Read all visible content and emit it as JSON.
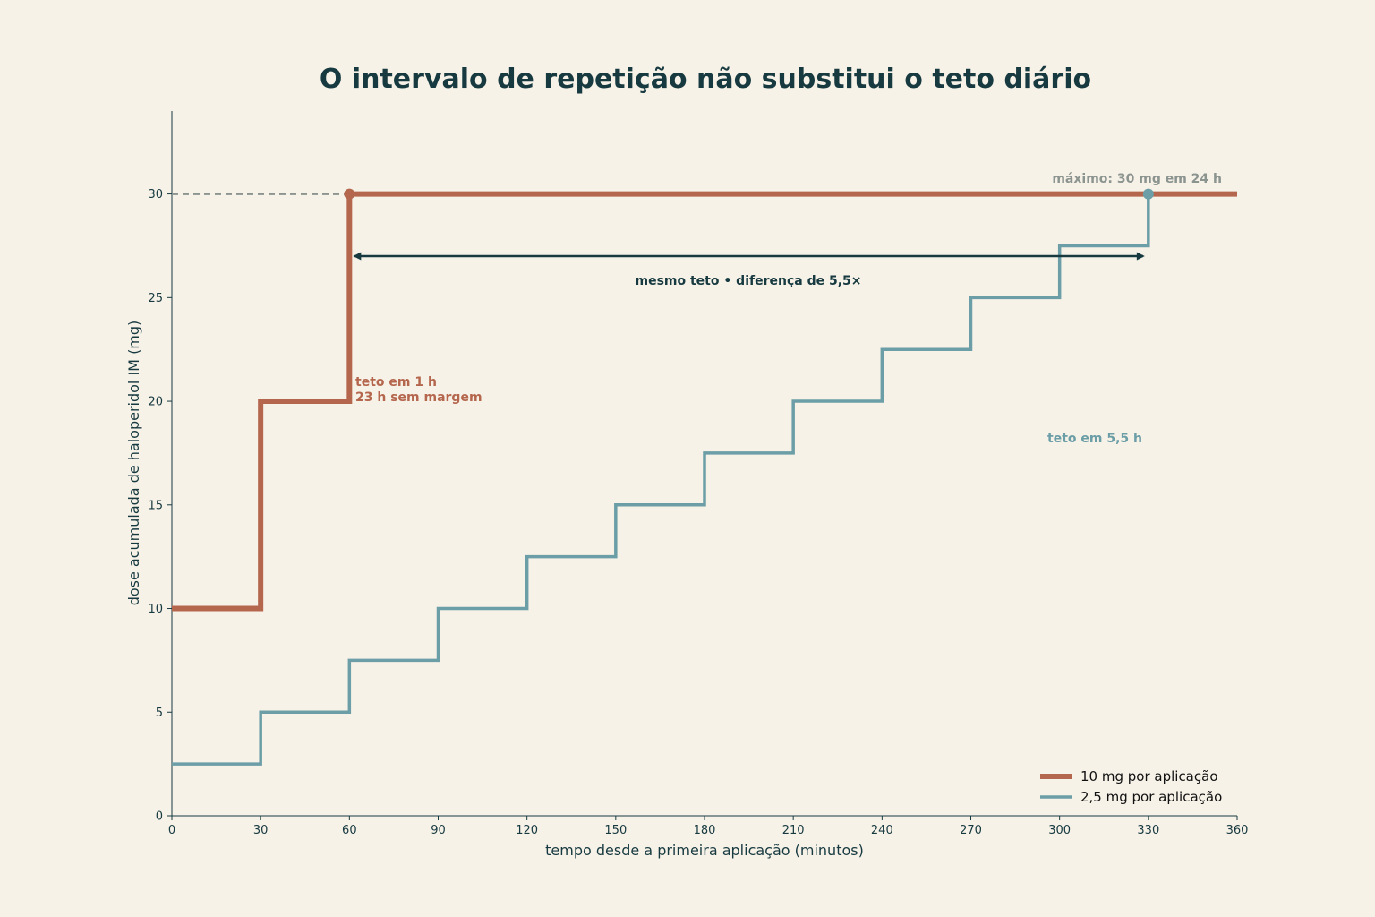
{
  "colors": {
    "background": "#f7f2e8",
    "axis": "#173a40",
    "series_10mg": "#b5674e",
    "series_2_5mg": "#6b9ea6",
    "ceiling_line": "#8c9490",
    "max_label": "#8c9490",
    "arrow": "#173a40"
  },
  "chart_data": {
    "type": "line",
    "title": "O intervalo de repetição não substitui o teto diário",
    "xlabel": "tempo desde a primeira aplicação (minutos)",
    "ylabel": "dose acumulada de haloperidol IM (mg)",
    "xlim": [
      0,
      360
    ],
    "ylim": [
      0,
      34
    ],
    "x_ticks": [
      0,
      30,
      60,
      90,
      120,
      150,
      180,
      210,
      240,
      270,
      300,
      330,
      360
    ],
    "y_ticks": [
      0,
      5,
      10,
      15,
      20,
      25,
      30
    ],
    "grid": false,
    "step": true,
    "series": [
      {
        "name": "10 mg por aplicação",
        "x": [
          0,
          30,
          60,
          360
        ],
        "y": [
          10,
          20,
          30,
          30
        ]
      },
      {
        "name": "2,5 mg por aplicação",
        "x": [
          0,
          30,
          60,
          90,
          120,
          150,
          180,
          210,
          240,
          270,
          300,
          330,
          360
        ],
        "y": [
          2.5,
          5,
          7.5,
          10,
          12.5,
          15,
          17.5,
          20,
          22.5,
          25,
          27.5,
          30,
          30
        ]
      }
    ],
    "ceiling": {
      "y": 30,
      "label": "máximo: 30 mg em 24 h"
    },
    "arrow": {
      "x_from": 60,
      "x_to": 330,
      "y": 27,
      "label": "mesmo teto • diferença de 5,5×"
    },
    "annotations": {
      "a10_line1": "teto em 1 h",
      "a10_line2": "23 h sem margem",
      "a25": "teto em 5,5 h"
    },
    "legend_position": "bottom-right"
  }
}
